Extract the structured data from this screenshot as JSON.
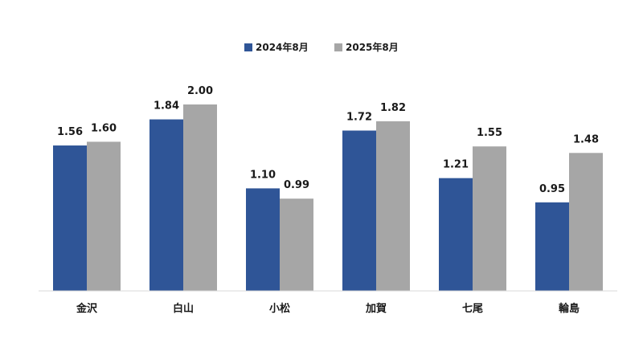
{
  "chart_data": {
    "type": "bar",
    "categories": [
      "金沢",
      "白山",
      "小松",
      "加賀",
      "七尾",
      "輪島"
    ],
    "series": [
      {
        "name": "2024年8月",
        "values": [
          1.56,
          1.84,
          1.1,
          1.72,
          1.21,
          0.95
        ],
        "labels": [
          "1.56",
          "1.84",
          "1.10",
          "1.72",
          "1.21",
          "0.95"
        ],
        "color": "#2f5597"
      },
      {
        "name": "2025年8月",
        "values": [
          1.6,
          2.0,
          0.99,
          1.82,
          1.55,
          1.48
        ],
        "labels": [
          "1.60",
          "2.00",
          "0.99",
          "1.82",
          "1.55",
          "1.48"
        ],
        "color": "#a6a6a6"
      }
    ],
    "ylim": [
      0,
      2.4
    ],
    "grid": false,
    "legend_position": "top-center",
    "title": "",
    "xlabel": "",
    "ylabel": ""
  }
}
